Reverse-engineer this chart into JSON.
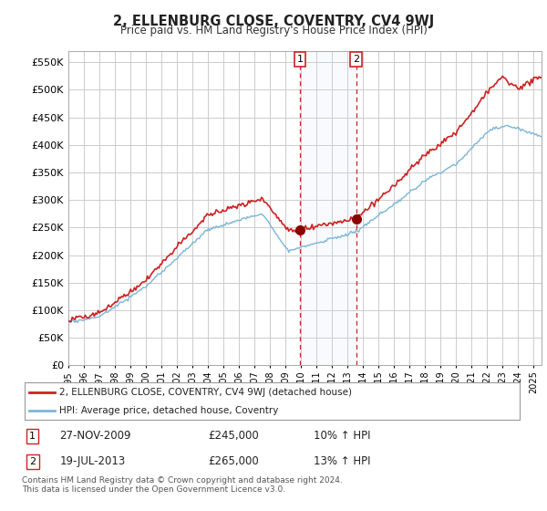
{
  "title": "2, ELLENBURG CLOSE, COVENTRY, CV4 9WJ",
  "subtitle": "Price paid vs. HM Land Registry's House Price Index (HPI)",
  "legend_line1": "2, ELLENBURG CLOSE, COVENTRY, CV4 9WJ (detached house)",
  "legend_line2": "HPI: Average price, detached house, Coventry",
  "transaction1_date": "27-NOV-2009",
  "transaction1_price": "£245,000",
  "transaction1_hpi": "10% ↑ HPI",
  "transaction2_date": "19-JUL-2013",
  "transaction2_price": "£265,000",
  "transaction2_hpi": "13% ↑ HPI",
  "footnote": "Contains HM Land Registry data © Crown copyright and database right 2024.\nThis data is licensed under the Open Government Licence v3.0.",
  "hpi_color": "#7ab5d8",
  "price_color": "#cc2222",
  "dot_color": "#8b0000",
  "transaction_color": "#cc2222",
  "background_color": "#ffffff",
  "grid_color": "#cccccc",
  "ylim": [
    0,
    570000
  ],
  "yticks": [
    0,
    50000,
    100000,
    150000,
    200000,
    250000,
    300000,
    350000,
    400000,
    450000,
    500000,
    550000
  ],
  "xlim_start": 1995.0,
  "xlim_end": 2025.5,
  "transaction1_x": 2009.92,
  "transaction2_x": 2013.55,
  "transaction1_y": 245000,
  "transaction2_y": 265000
}
